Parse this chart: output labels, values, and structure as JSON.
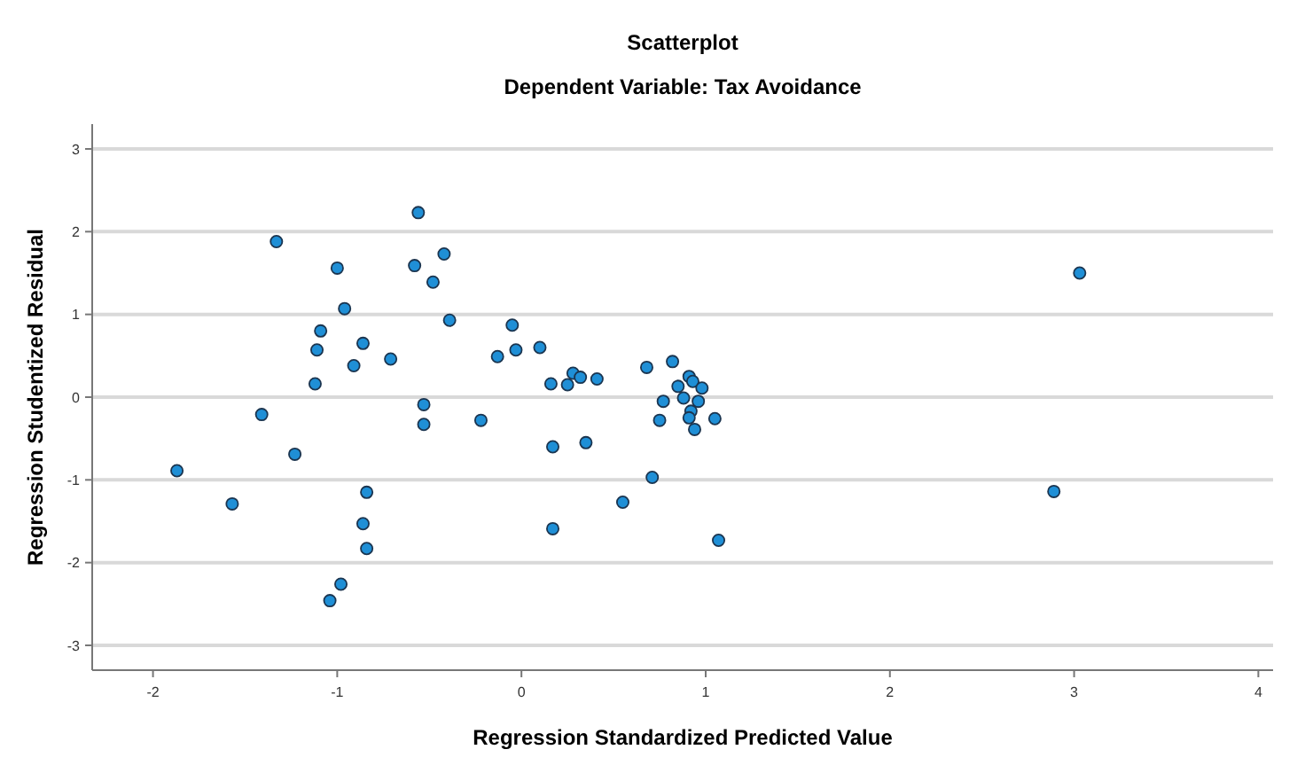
{
  "chart_data": {
    "type": "scatter",
    "title": "Scatterplot",
    "subtitle": "Dependent Variable: Tax Avoidance",
    "xlabel": "Regression Standardized Predicted Value",
    "ylabel": "Regression Studentized Residual",
    "xlim": [
      -2.33,
      4.08
    ],
    "ylim": [
      -3.3,
      3.3
    ],
    "xticks": [
      -2,
      -1,
      0,
      1,
      2,
      3,
      4
    ],
    "yticks": [
      -3,
      -2,
      -1,
      0,
      1,
      2,
      3
    ],
    "grid": "y",
    "marker": "circle",
    "series": [
      {
        "color": "#1f8fd6",
        "x": [
          -0.56,
          -1.33,
          -0.42,
          -1.0,
          -0.58,
          -0.48,
          -0.96,
          -0.39,
          -0.05,
          -1.09,
          -1.11,
          -0.86,
          -0.91,
          -0.71,
          -0.13,
          -0.03,
          -1.12,
          -0.53,
          -0.53,
          -0.22,
          -1.41,
          -1.23,
          -1.87,
          -1.57,
          -0.84,
          -0.86,
          -0.84,
          -0.98,
          -1.04,
          0.1,
          0.16,
          0.25,
          0.28,
          0.32,
          0.41,
          0.17,
          0.35,
          0.17,
          0.55,
          0.71,
          0.68,
          0.82,
          0.91,
          0.93,
          0.85,
          0.98,
          0.88,
          0.96,
          0.77,
          0.92,
          0.75,
          0.91,
          0.94,
          1.05,
          1.07,
          2.89,
          3.03
        ],
        "values": [
          2.23,
          1.88,
          1.73,
          1.56,
          1.59,
          1.39,
          1.07,
          0.93,
          0.87,
          0.8,
          0.57,
          0.65,
          0.38,
          0.46,
          0.49,
          0.57,
          0.16,
          -0.09,
          -0.33,
          -0.28,
          -0.21,
          -0.69,
          -0.89,
          -1.29,
          -1.15,
          -1.53,
          -1.83,
          -2.26,
          -2.46,
          0.6,
          0.16,
          0.15,
          0.29,
          0.24,
          0.22,
          -0.6,
          -0.55,
          -1.59,
          -1.27,
          -0.97,
          0.36,
          0.43,
          0.25,
          0.19,
          0.13,
          0.11,
          -0.01,
          -0.05,
          -0.05,
          -0.17,
          -0.28,
          -0.25,
          -0.39,
          -0.26,
          -1.73,
          -1.14,
          1.5
        ]
      }
    ]
  }
}
